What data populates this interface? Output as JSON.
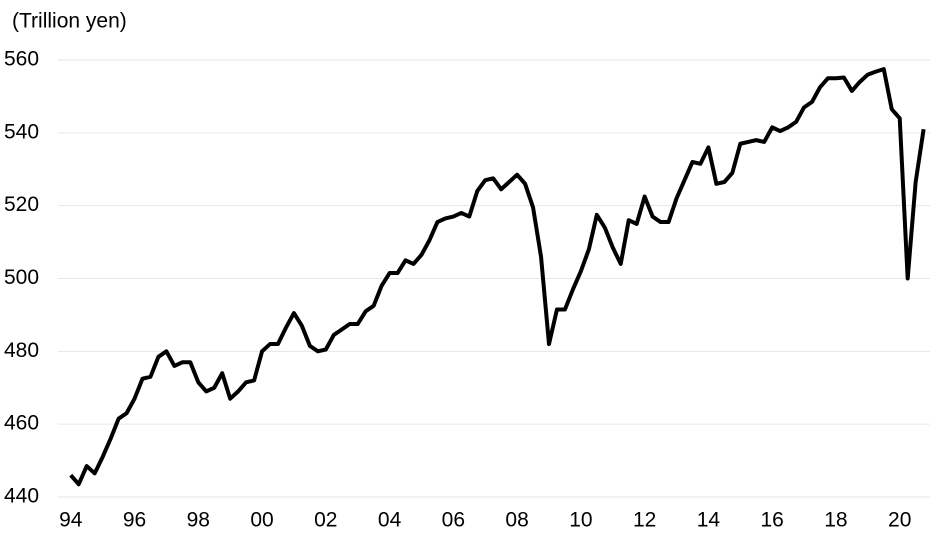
{
  "chart_data": {
    "type": "line",
    "y_label": "(Trillion yen)",
    "x": [
      1994,
      1994.25,
      1994.5,
      1994.75,
      1995,
      1995.25,
      1995.5,
      1995.75,
      1996,
      1996.25,
      1996.5,
      1996.75,
      1997,
      1997.25,
      1997.5,
      1997.75,
      1998,
      1998.25,
      1998.5,
      1998.75,
      1999,
      1999.25,
      1999.5,
      1999.75,
      2000,
      2000.25,
      2000.5,
      2000.75,
      2001,
      2001.25,
      2001.5,
      2001.75,
      2002,
      2002.25,
      2002.5,
      2002.75,
      2003,
      2003.25,
      2003.5,
      2003.75,
      2004,
      2004.25,
      2004.5,
      2004.75,
      2005,
      2005.25,
      2005.5,
      2005.75,
      2006,
      2006.25,
      2006.5,
      2006.75,
      2007,
      2007.25,
      2007.5,
      2007.75,
      2008,
      2008.25,
      2008.5,
      2008.75,
      2009,
      2009.25,
      2009.5,
      2009.75,
      2010,
      2010.25,
      2010.5,
      2010.75,
      2011,
      2011.25,
      2011.5,
      2011.75,
      2012,
      2012.25,
      2012.5,
      2012.75,
      2013,
      2013.25,
      2013.5,
      2013.75,
      2014,
      2014.25,
      2014.5,
      2014.75,
      2015,
      2015.25,
      2015.5,
      2015.75,
      2016,
      2016.25,
      2016.5,
      2016.75,
      2017,
      2017.25,
      2017.5,
      2017.75,
      2018,
      2018.25,
      2018.5,
      2018.75,
      2019,
      2019.25,
      2019.5,
      2019.75,
      2020,
      2020.25,
      2020.5,
      2020.75
    ],
    "series": [
      {
        "color": "#000000",
        "values": [
          446,
          443.5,
          448.5,
          446.5,
          451,
          456,
          461.5,
          463,
          467,
          472.5,
          473,
          478.5,
          480,
          476,
          477,
          477,
          471.5,
          469,
          470,
          474,
          467,
          469,
          471.5,
          472,
          480,
          482,
          482,
          486.5,
          490.5,
          487,
          481.5,
          480,
          480.5,
          484.5,
          486,
          487.5,
          487.5,
          491,
          492.5,
          498,
          501.5,
          501.5,
          505,
          504,
          506.5,
          510.5,
          515.5,
          516.5,
          517,
          518,
          517,
          524,
          527,
          527.5,
          524.5,
          526.5,
          528.5,
          526,
          519.5,
          506,
          482,
          491.5,
          491.5,
          497,
          502,
          508,
          517.5,
          514,
          508.5,
          504,
          516,
          515,
          522.5,
          517,
          515.5,
          515.5,
          522,
          527,
          532,
          531.5,
          536,
          526,
          526.5,
          529,
          537,
          537.5,
          538,
          537.5,
          541.5,
          540.5,
          541.5,
          543,
          547,
          548.5,
          552.5,
          555,
          555,
          555.2,
          551.5,
          554,
          556,
          556.8,
          557.5,
          546.5,
          544,
          500,
          526.5,
          541
        ]
      }
    ],
    "xlim": [
      1993.6,
      2020.95
    ],
    "xticks": [
      {
        "value": 1994,
        "label": "94"
      },
      {
        "value": 1996,
        "label": "96"
      },
      {
        "value": 1998,
        "label": "98"
      },
      {
        "value": 2000,
        "label": "00"
      },
      {
        "value": 2002,
        "label": "02"
      },
      {
        "value": 2004,
        "label": "04"
      },
      {
        "value": 2006,
        "label": "06"
      },
      {
        "value": 2008,
        "label": "08"
      },
      {
        "value": 2010,
        "label": "10"
      },
      {
        "value": 2012,
        "label": "12"
      },
      {
        "value": 2014,
        "label": "14"
      },
      {
        "value": 2016,
        "label": "16"
      },
      {
        "value": 2018,
        "label": "18"
      },
      {
        "value": 2020,
        "label": "20"
      }
    ],
    "ylim": [
      440,
      560
    ],
    "yticks": [
      440,
      460,
      480,
      500,
      520,
      540,
      560
    ],
    "grid": true
  }
}
